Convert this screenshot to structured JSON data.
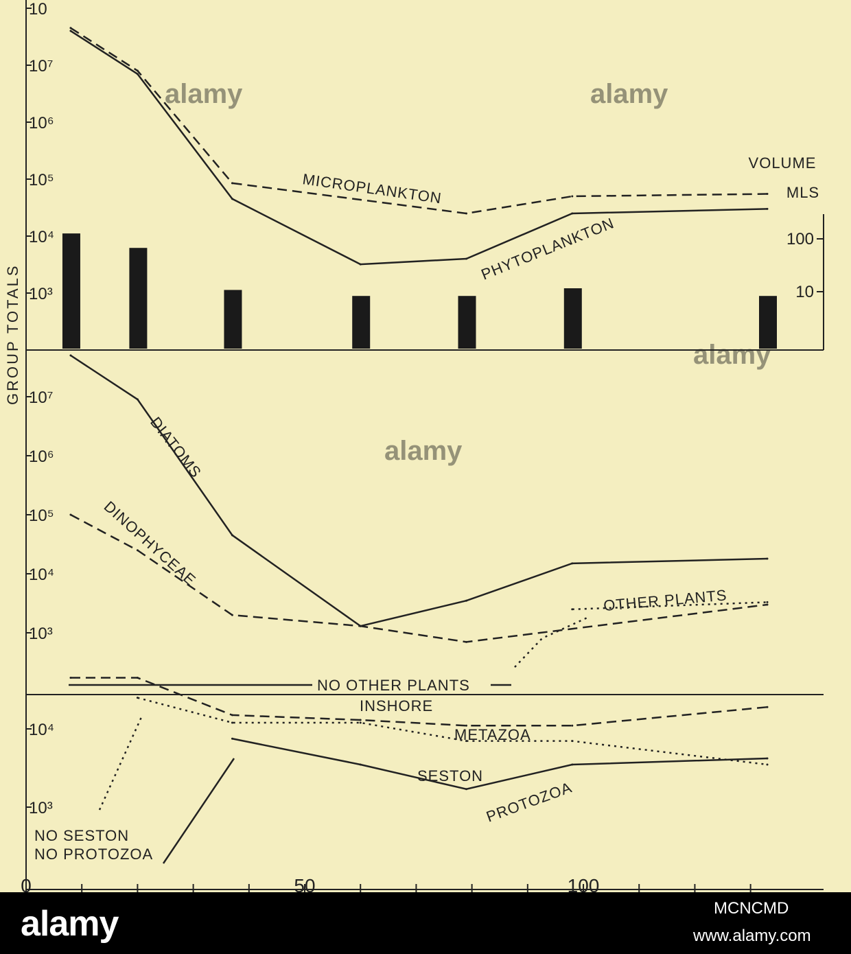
{
  "chart_data": [
    {
      "type": "line",
      "title": "",
      "ylabel": "GROUP TOTALS",
      "yscale": "log",
      "ylim": [
        100,
        100000000
      ],
      "y_tick_labels": [
        "10",
        "10⁷",
        "10⁶",
        "10⁵",
        "10⁴",
        "10³"
      ],
      "x": [
        8,
        20,
        37,
        60,
        79,
        98,
        133
      ],
      "series": [
        {
          "name": "MICROPLANKTON",
          "style": "dashed",
          "values": [
            45000000,
            8000000,
            85000,
            null,
            25000,
            50000,
            55000
          ]
        },
        {
          "name": "PHYTOPLANKTON",
          "style": "solid",
          "values": [
            40000000,
            7000000,
            45000,
            3200,
            4000,
            25000,
            30000
          ]
        }
      ],
      "secondary_axis": {
        "label_top": "VOLUME",
        "label_unit": "MLS",
        "tick_labels": [
          "100",
          "10"
        ],
        "ylim": [
          1,
          1000
        ],
        "bars": [
          180,
          90,
          12,
          9,
          9,
          13,
          9
        ]
      },
      "annotations": []
    },
    {
      "type": "line",
      "yscale": "log",
      "ylim": [
        100,
        100000000
      ],
      "y_tick_labels": [
        "10⁷",
        "10⁶",
        "10⁵",
        "10⁴",
        "10³"
      ],
      "x": [
        8,
        20,
        37,
        60,
        79,
        98,
        133
      ],
      "series": [
        {
          "name": "DIATOMS",
          "style": "solid",
          "values": [
            50000000,
            9000000,
            45000,
            1300,
            3500,
            15000,
            18000
          ]
        },
        {
          "name": "DINOPHYCEAE",
          "style": "dashed",
          "values": [
            100000,
            25000,
            2000,
            1300,
            700,
            null,
            3000
          ]
        },
        {
          "name": "OTHER PLANTS",
          "style": "dotted",
          "values": [
            null,
            null,
            null,
            null,
            null,
            2500,
            3300
          ]
        }
      ],
      "annotations": [
        "NO OTHER PLANTS",
        "INSHORE"
      ]
    },
    {
      "type": "line",
      "yscale": "log",
      "ylim": [
        500,
        100000
      ],
      "y_tick_labels": [
        "10⁴",
        "10³"
      ],
      "x": [
        8,
        20,
        37,
        60,
        79,
        98,
        133
      ],
      "x_tick_labels": [
        "0",
        "50",
        "100"
      ],
      "series": [
        {
          "name": "METAZOA",
          "style": "dashed",
          "values": [
            45000,
            45000,
            15000,
            13000,
            11000,
            11000,
            19000
          ]
        },
        {
          "name": "SESTON",
          "style": "dotted",
          "values": [
            null,
            25000,
            12000,
            12000,
            7000,
            7000,
            3500
          ]
        },
        {
          "name": "PROTOZOA",
          "style": "solid",
          "values": [
            null,
            null,
            7500,
            3500,
            1700,
            3500,
            4200
          ]
        }
      ],
      "annotations": [
        "NO SESTON",
        "NO PROTOZOA"
      ]
    }
  ],
  "watermark": {
    "text": "alamy",
    "banner_logo": "alamy",
    "image_id": "MCNCMD",
    "url": "www.alamy.com"
  },
  "colors": {
    "paper": "#f4eec0",
    "ink": "#222222",
    "bar": "#1a1a1a"
  }
}
